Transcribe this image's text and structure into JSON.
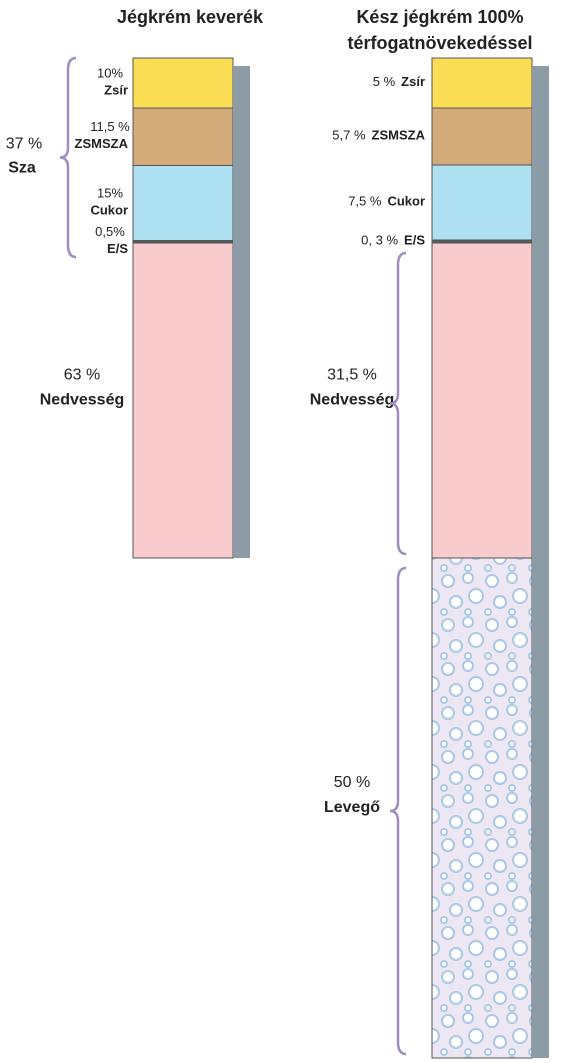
{
  "chart_data": [
    {
      "type": "stacked-column",
      "title_lines": [
        "Jégkrém keverék"
      ],
      "labels": [
        "Zsír",
        "ZSMSZA",
        "Cukor",
        "E/S",
        "Nedvesség"
      ],
      "values": [
        10,
        11.5,
        15,
        0.5,
        63
      ],
      "value_labels": [
        "10%",
        "11,5 %",
        "15%",
        "0,5%",
        "63 %"
      ],
      "colors": [
        "#fadd55",
        "#d3aa7a",
        "#ade0f0",
        "#555a60",
        "#f8cccc"
      ],
      "annotation": [
        "37 %",
        "Sza"
      ]
    },
    {
      "type": "stacked-column",
      "title_lines": [
        "Kész jégkrém 100%",
        "térfogatnövekedéssel"
      ],
      "labels": [
        "Zsír",
        "ZSMSZA",
        "Cukor",
        "E/S",
        "Nedvesség",
        "Levegő"
      ],
      "values": [
        5,
        5.7,
        7.5,
        0.3,
        31.5,
        50
      ],
      "value_labels": [
        "5 %",
        "5,7 %",
        "7,5 %",
        "0, 3 %",
        "31,5 %",
        "50 %"
      ],
      "colors": [
        "#fadd55",
        "#d3aa7a",
        "#ade0f0",
        "#555a60",
        "#f8cccc",
        "#ece7f3"
      ]
    }
  ]
}
